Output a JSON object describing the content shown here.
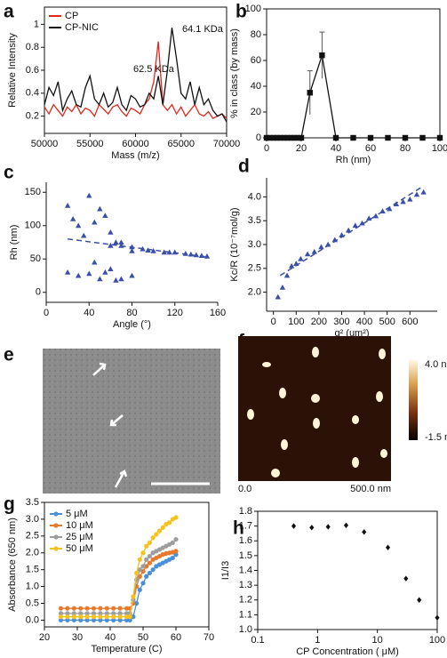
{
  "chart_data": [
    {
      "panel": "a",
      "type": "line",
      "frame": true,
      "legend": "upper left",
      "xlabel": "Mass (m/z)",
      "ylabel": "Relative Intensity",
      "annotations": [
        "62.5 KDa",
        "64.1 KDa"
      ],
      "x": [
        50000,
        50500,
        51000,
        51500,
        52000,
        52500,
        53000,
        53500,
        54000,
        54500,
        55000,
        55500,
        56000,
        56500,
        57000,
        57500,
        58000,
        58500,
        59000,
        59500,
        60000,
        60500,
        61000,
        61500,
        62000,
        62500,
        63000,
        63500,
        64000,
        64500,
        65000,
        65500,
        66000,
        66500,
        67000,
        67500,
        68000,
        68500,
        69000,
        69500,
        70000
      ],
      "series": [
        {
          "name": "CP",
          "color": "#e0281e",
          "marker": "none",
          "values": [
            0.28,
            0.22,
            0.3,
            0.25,
            0.2,
            0.28,
            0.24,
            0.3,
            0.22,
            0.27,
            0.25,
            0.2,
            0.3,
            0.26,
            0.22,
            0.28,
            0.3,
            0.24,
            0.2,
            0.27,
            0.25,
            0.22,
            0.3,
            0.35,
            0.5,
            0.85,
            0.3,
            0.25,
            0.3,
            0.22,
            0.28,
            0.2,
            0.25,
            0.3,
            0.22,
            0.2,
            0.24,
            0.18,
            0.2,
            0.22,
            0.18
          ]
        },
        {
          "name": "CP-NIC",
          "color": "#111111",
          "marker": "none",
          "values": [
            0.3,
            0.45,
            0.38,
            0.5,
            0.25,
            0.35,
            0.42,
            0.3,
            0.28,
            0.45,
            0.55,
            0.35,
            0.3,
            0.4,
            0.28,
            0.32,
            0.45,
            0.3,
            0.25,
            0.38,
            0.35,
            0.28,
            0.3,
            0.4,
            0.35,
            0.55,
            0.3,
            0.6,
            0.97,
            0.7,
            0.4,
            0.35,
            0.5,
            0.3,
            0.45,
            0.3,
            0.35,
            0.25,
            0.2,
            0.22,
            0.15
          ]
        }
      ],
      "xlim": [
        50000,
        70000
      ],
      "xticks": [
        50000,
        55000,
        60000,
        65000,
        70000
      ],
      "ylim": [
        0.05,
        1.15
      ],
      "yticks": [
        0.2,
        0.4,
        0.6,
        0.8,
        1
      ]
    },
    {
      "panel": "b",
      "type": "line",
      "frame": true,
      "xlabel": "Rh (nm)",
      "ylabel": "% in class (by mass)",
      "x": [
        0,
        2,
        4,
        6,
        8,
        10,
        12,
        14,
        16,
        18,
        20,
        25,
        32,
        40,
        50,
        60,
        70,
        80,
        90,
        100
      ],
      "series": [
        {
          "color": "#111111",
          "marker": "square",
          "values": [
            0,
            0,
            0,
            0,
            0,
            0,
            0,
            0,
            0,
            0,
            0,
            35,
            64,
            0,
            0,
            0,
            0,
            0,
            0,
            0
          ],
          "errors": [
            0,
            0,
            0,
            0,
            0,
            0,
            0,
            0,
            0,
            0,
            0,
            17,
            18,
            0,
            0,
            0,
            0,
            0,
            0,
            0
          ]
        }
      ],
      "xlim": [
        0,
        100
      ],
      "xticks": [
        0,
        20,
        40,
        60,
        80,
        100
      ],
      "ylim": [
        0,
        100
      ],
      "yticks": [
        0,
        20,
        40,
        60,
        80,
        100
      ]
    },
    {
      "panel": "c",
      "type": "scatter",
      "frame": false,
      "xlabel": "Angle (°)",
      "ylabel": "Rh (nm)",
      "series": [
        {
          "color": "#3a4fa8",
          "marker": "triangle",
          "x": [
            20,
            25,
            30,
            35,
            40,
            45,
            50,
            55,
            60,
            65,
            70,
            20,
            30,
            40,
            45,
            50,
            55,
            60,
            65,
            70,
            80,
            60,
            70,
            80,
            90,
            100,
            110,
            120,
            130,
            140,
            150,
            80,
            95,
            115,
            135,
            145
          ],
          "values": [
            130,
            110,
            100,
            85,
            145,
            105,
            125,
            115,
            90,
            75,
            75,
            30,
            25,
            28,
            45,
            20,
            30,
            35,
            18,
            20,
            25,
            70,
            70,
            68,
            65,
            62,
            60,
            60,
            58,
            56,
            54,
            62,
            63,
            60,
            57,
            55
          ]
        }
      ],
      "fit": {
        "x": [
          20,
          150
        ],
        "y": [
          80,
          53
        ]
      },
      "fit_color": "#3a4fa8",
      "xlim": [
        0,
        160
      ],
      "xticks": [
        0,
        40,
        80,
        120,
        160
      ],
      "ylim": [
        -15,
        165
      ],
      "yticks": [
        0,
        50,
        100,
        150
      ]
    },
    {
      "panel": "d",
      "type": "scatter",
      "frame": false,
      "xlabel": "q² (um²)",
      "ylabel": "Kc/R (10⁻⁷mol/g)",
      "series": [
        {
          "color": "#3a4fa8",
          "marker": "triangle",
          "x": [
            20,
            40,
            60,
            80,
            100,
            120,
            150,
            180,
            210,
            240,
            270,
            300,
            330,
            360,
            390,
            420,
            450,
            480,
            510,
            540,
            570,
            600,
            630,
            660
          ],
          "values": [
            1.9,
            2.1,
            2.35,
            2.55,
            2.6,
            2.7,
            2.8,
            2.85,
            2.95,
            3.0,
            3.1,
            3.2,
            3.3,
            3.4,
            3.45,
            3.55,
            3.6,
            3.7,
            3.75,
            3.85,
            3.9,
            3.95,
            4.05,
            4.1
          ]
        }
      ],
      "fit": {
        "x": [
          30,
          650
        ],
        "y": [
          2.35,
          4.2
        ]
      },
      "fit_color": "#3a4fa8",
      "xlim": [
        -30,
        720
      ],
      "xticks": [
        0,
        100,
        200,
        300,
        400,
        500,
        600
      ],
      "ylim": [
        1.6,
        4.4
      ],
      "yticks": [
        {
          "value": 2,
          "label": "2.0"
        },
        2.5,
        {
          "value": 3,
          "label": "3.0"
        },
        3.5,
        {
          "value": 4,
          "label": "4.0"
        }
      ]
    },
    {
      "panel": "g",
      "type": "line",
      "frame": true,
      "legend": "upper left",
      "xlabel": "Temperature (C)",
      "ylabel": "Absorbance (650 nm)",
      "x": [
        25,
        27,
        29,
        31,
        33,
        35,
        37,
        39,
        41,
        43,
        45,
        46,
        47,
        48,
        49,
        50,
        51,
        52,
        53,
        54,
        55,
        56,
        57,
        58,
        59,
        60
      ],
      "series": [
        {
          "name": "5 μM",
          "color": "#4a90d9",
          "marker": "circle",
          "values": [
            0,
            0,
            0,
            0,
            0,
            0,
            0,
            0,
            0,
            0,
            0,
            0,
            0.1,
            0.5,
            0.9,
            1.1,
            1.3,
            1.4,
            1.5,
            1.6,
            1.65,
            1.7,
            1.75,
            1.8,
            1.85,
            1.95
          ]
        },
        {
          "name": "10 μM",
          "color": "#e8792b",
          "marker": "circle",
          "values": [
            0.35,
            0.35,
            0.35,
            0.35,
            0.35,
            0.35,
            0.35,
            0.35,
            0.35,
            0.35,
            0.35,
            0.35,
            0.5,
            1.0,
            1.3,
            1.45,
            1.6,
            1.7,
            1.8,
            1.85,
            1.9,
            1.95,
            1.98,
            2.0,
            2.02,
            2.05
          ]
        },
        {
          "name": "25 μM",
          "color": "#9e9e9e",
          "marker": "circle",
          "values": [
            0.2,
            0.2,
            0.2,
            0.2,
            0.2,
            0.2,
            0.2,
            0.2,
            0.2,
            0.2,
            0.2,
            0.2,
            0.6,
            1.2,
            1.5,
            1.6,
            1.8,
            1.9,
            2.0,
            2.05,
            2.1,
            2.15,
            2.2,
            2.25,
            2.3,
            2.4
          ]
        },
        {
          "name": "50 μM",
          "color": "#f5c21b",
          "marker": "circle",
          "values": [
            0.1,
            0.1,
            0.1,
            0.1,
            0.1,
            0.1,
            0.1,
            0.1,
            0.1,
            0.1,
            0.1,
            0.1,
            0.7,
            1.4,
            1.8,
            2.0,
            2.2,
            2.3,
            2.45,
            2.55,
            2.65,
            2.75,
            2.85,
            2.9,
            3.0,
            3.05
          ]
        }
      ],
      "xlim": [
        20,
        70
      ],
      "xticks": [
        20,
        30,
        40,
        50,
        60,
        70
      ],
      "ylim": [
        -0.2,
        3.5
      ],
      "yticks": [
        {
          "value": 0,
          "label": "0.0"
        },
        0.5,
        {
          "value": 1,
          "label": "1.0"
        },
        1.5,
        {
          "value": 2,
          "label": "2.0"
        },
        2.5,
        {
          "value": 3,
          "label": "3.0"
        },
        3.5
      ]
    },
    {
      "panel": "h",
      "type": "scatter",
      "frame": true,
      "xscale": "log",
      "xlabel": "CP Concentration ( μM)",
      "ylabel": "I1/I3",
      "series": [
        {
          "color": "#111111",
          "marker": "diamond",
          "x": [
            0.4,
            0.8,
            1.5,
            3,
            6,
            15,
            30,
            50,
            100
          ],
          "values": [
            1.7,
            1.69,
            1.695,
            1.705,
            1.66,
            1.555,
            1.345,
            1.2,
            1.08
          ]
        }
      ],
      "xlim": [
        0.1,
        100
      ],
      "xticks": [
        0.1,
        1,
        10,
        100
      ],
      "ylim": [
        1.0,
        1.8
      ],
      "yticks": [
        {
          "value": 1,
          "label": "1.0"
        },
        1.1,
        1.2,
        1.3,
        1.4,
        1.5,
        1.6,
        1.7,
        1.8
      ]
    }
  ],
  "images": [
    {
      "panel": "e"
    },
    {
      "panel": "f",
      "colorbar_max": "4.0 nm",
      "colorbar_min": "-1.5 nm",
      "x_start": "0.0",
      "x_end": "500.0 nm"
    }
  ]
}
